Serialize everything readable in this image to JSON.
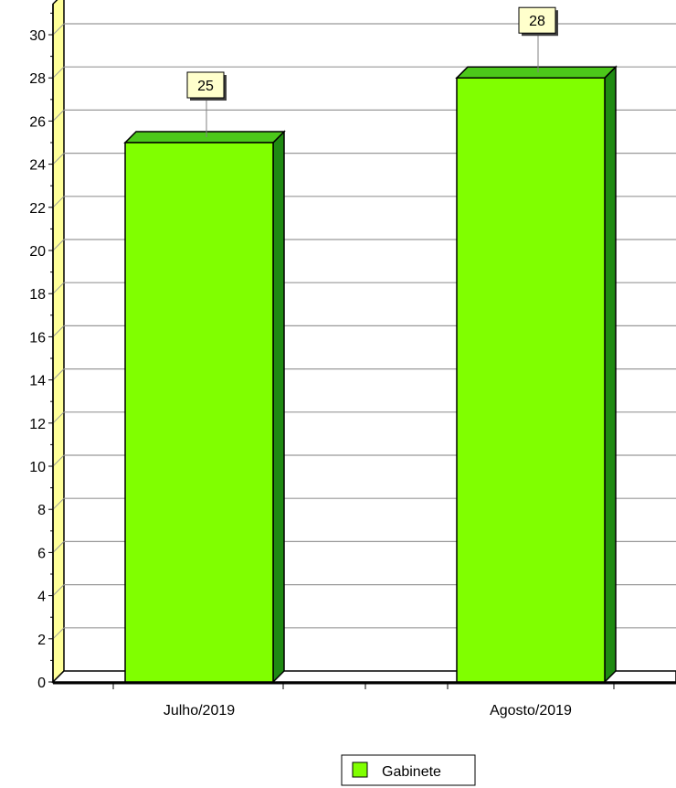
{
  "chart_data": {
    "type": "bar",
    "categories": [
      "Julho/2019",
      "Agosto/2019"
    ],
    "series": [
      {
        "name": "Gabinete",
        "values": [
          25,
          28
        ]
      }
    ],
    "ylim": [
      0,
      31
    ],
    "y_ticks": [
      0,
      2,
      4,
      6,
      8,
      10,
      12,
      14,
      16,
      18,
      20,
      22,
      24,
      26,
      28,
      30
    ],
    "grid": true,
    "legend": "bottom-center",
    "style": "3d",
    "colors": {
      "bar_front": "#80ff00",
      "bar_top": "#4cc81a",
      "bar_side": "#1f8a12",
      "wall": "#ffff99",
      "grid": "#999999",
      "label_bg": "#ffffcc"
    }
  }
}
